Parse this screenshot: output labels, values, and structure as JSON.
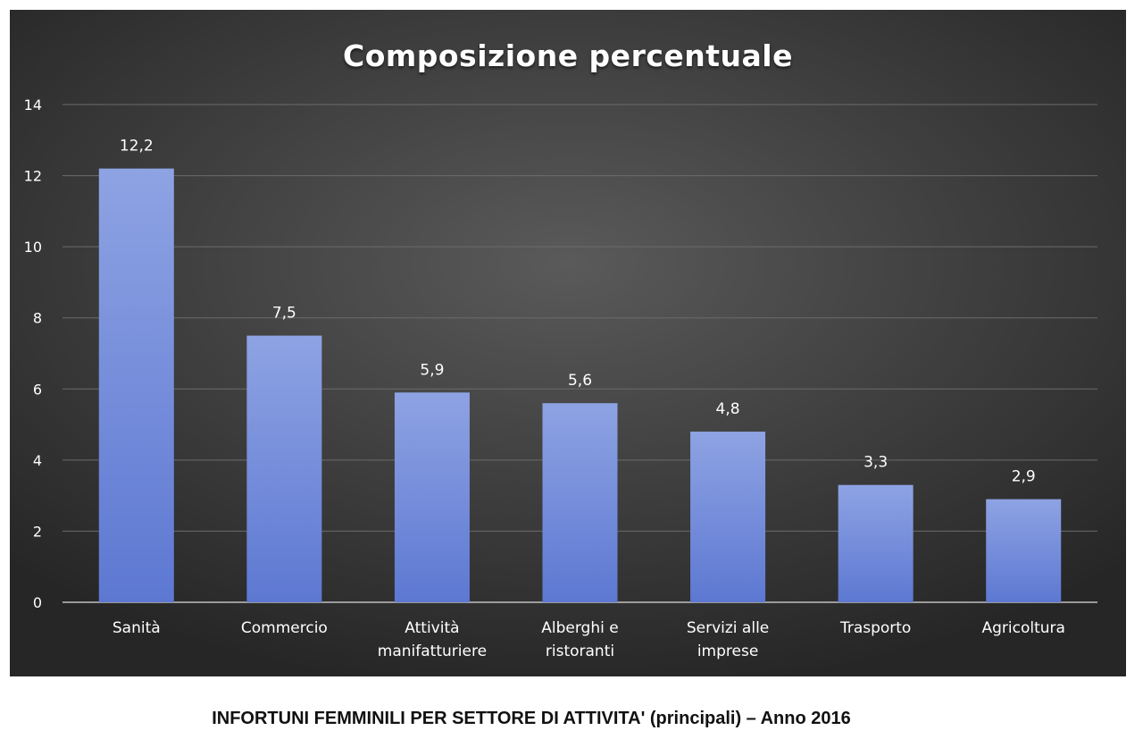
{
  "chart_data": {
    "type": "bar",
    "title": "Composizione percentuale",
    "xlabel": "",
    "ylabel": "",
    "categories": [
      "Sanità",
      "Commercio",
      "Attività manifatturiere",
      "Alberghi e ristoranti",
      "Servizi alle imprese",
      "Trasporto",
      "Agricoltura"
    ],
    "category_lines": [
      [
        "Sanità"
      ],
      [
        "Commercio"
      ],
      [
        "Attività",
        "manifatturiere"
      ],
      [
        "Alberghi e",
        "ristoranti"
      ],
      [
        "Servizi alle",
        "imprese"
      ],
      [
        "Trasporto"
      ],
      [
        "Agricoltura"
      ]
    ],
    "values": [
      12.2,
      7.5,
      5.9,
      5.6,
      4.8,
      3.3,
      2.9
    ],
    "value_labels": [
      "12,2",
      "7,5",
      "5,9",
      "5,6",
      "4,8",
      "3,3",
      "2,9"
    ],
    "ylim": [
      0,
      14
    ],
    "yticks": [
      0,
      2,
      4,
      6,
      8,
      10,
      12,
      14
    ],
    "grid": true,
    "legend": "none",
    "colors": {
      "bar_top": "#8ea3e3",
      "bar_bottom": "#5d78d2",
      "panel": "#3a3a3a",
      "grid": "#6b6b6b",
      "axis": "#bfbfbf",
      "text": "#ffffff"
    }
  },
  "caption": "INFORTUNI FEMMINILI PER SETTORE DI ATTIVITA' (principali) – Anno 2016"
}
